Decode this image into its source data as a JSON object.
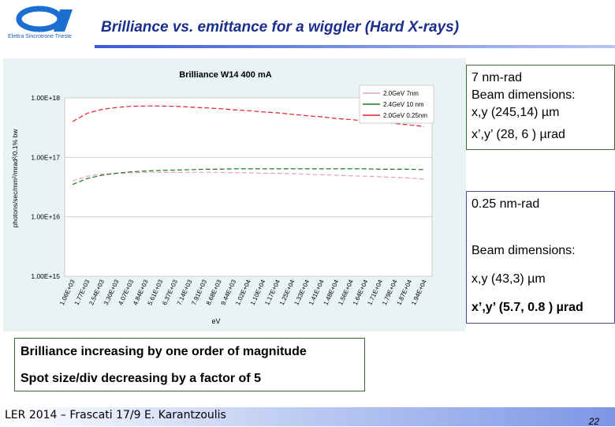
{
  "header": {
    "logo_text": "Elettra Sincrotrone Trieste",
    "title": "Brilliance vs. emittance for a wiggler (Hard X-rays)"
  },
  "chart_data": {
    "type": "line",
    "title": "Brilliance W14 400 mA",
    "xlabel": "eV",
    "ylabel": "photons/sec/mm²/mrad²/0.1% bw",
    "y_scale": "log",
    "ylim": [
      1000000000000000.0,
      1e+18
    ],
    "y_ticks": [
      "1.00E+18",
      "1.00E+17",
      "1.00E+16",
      "1.00E+15"
    ],
    "x_tick_labels": [
      "1.06E+03",
      "1.77E+03",
      "2.54E+03",
      "3.30E+03",
      "4.07E+03",
      "4.84E+03",
      "5.61E+03",
      "6.37E+03",
      "7.14E+03",
      "7.91E+03",
      "8.68E+03",
      "9.44E+03",
      "1.02E+04",
      "1.10E+04",
      "1.17E+04",
      "1.25E+04",
      "1.33E+04",
      "1.41E+04",
      "1.48E+04",
      "1.56E+04",
      "1.64E+04",
      "1.71E+04",
      "1.79E+04",
      "1.87E+04",
      "1.94E+04"
    ],
    "x": [
      1060,
      1770,
      2540,
      3300,
      4070,
      4840,
      5610,
      6370,
      7140,
      7910,
      8680,
      9440,
      10200,
      11000,
      11700,
      12500,
      13300,
      14100,
      14800,
      15600,
      16400,
      17100,
      17900,
      18700,
      19400
    ],
    "grid": true,
    "legend_position": "top-right",
    "series": [
      {
        "name": "2.0GeV 7nm",
        "color": "#e8a0b4",
        "style": "dashed",
        "values": [
          4e+16,
          4.8e+16,
          5.2e+16,
          5.4e+16,
          5.5e+16,
          5.6e+16,
          5.6e+16,
          5.6e+16,
          5.6e+16,
          5.6e+16,
          5.6e+16,
          5.5e+16,
          5.5e+16,
          5.4e+16,
          5.4e+16,
          5.3e+16,
          5.2e+16,
          5.1e+16,
          5e+16,
          4.9e+16,
          4.8e+16,
          4.7e+16,
          4.6e+16,
          4.5e+16,
          4.3e+16
        ]
      },
      {
        "name": "2.4GeV 10 nm",
        "color": "#1f7a1f",
        "style": "dashed",
        "values": [
          3.5e+16,
          4.4e+16,
          5e+16,
          5.4e+16,
          5.7e+16,
          5.9e+16,
          6e+16,
          6.1e+16,
          6.2e+16,
          6.3e+16,
          6.3e+16,
          6.4e+16,
          6.4e+16,
          6.4e+16,
          6.4e+16,
          6.4e+16,
          6.4e+16,
          6.4e+16,
          6.4e+16,
          6.4e+16,
          6.4e+16,
          6.3e+16,
          6.3e+16,
          6.3e+16,
          6.2e+16
        ]
      },
      {
        "name": "2.0GeV 0.25nm",
        "color": "#e0202a",
        "style": "dashed",
        "values": [
          4e+17,
          5.5e+17,
          6.4e+17,
          6.9e+17,
          7.2e+17,
          7.3e+17,
          7.3e+17,
          7.2e+17,
          7e+17,
          6.8e+17,
          6.6e+17,
          6.3e+17,
          6.1e+17,
          5.8e+17,
          5.6e+17,
          5.3e+17,
          5e+17,
          4.8e+17,
          4.5e+17,
          4.3e+17,
          4.1e+17,
          3.9e+17,
          3.7e+17,
          3.5e+17,
          3.3e+17
        ]
      }
    ]
  },
  "box1": {
    "line1": "7 nm-rad",
    "line2": "Beam dimensions:",
    "line3": "x,y (245,14) µm",
    "line4": "x’,y’ (28, 6 ) µrad"
  },
  "box2": {
    "line1": "0.25 nm-rad",
    "line2": "Beam dimensions:",
    "line3": "x,y (43,3) µm",
    "line4": "x’,y’ (5.7, 0.8 ) µrad"
  },
  "summary": {
    "line1": "Brilliance increasing by one order of magnitude",
    "line2": "Spot size/div decreasing by  a factor of  5"
  },
  "footer": {
    "text": "LER 2014 – Frascati 17/9   E. Karantzoulis",
    "page": "22"
  },
  "colors": {
    "title": "#1c2e8c",
    "chart_background": "#e9f3f3",
    "footer_gradient_end": "#7d96e6"
  }
}
